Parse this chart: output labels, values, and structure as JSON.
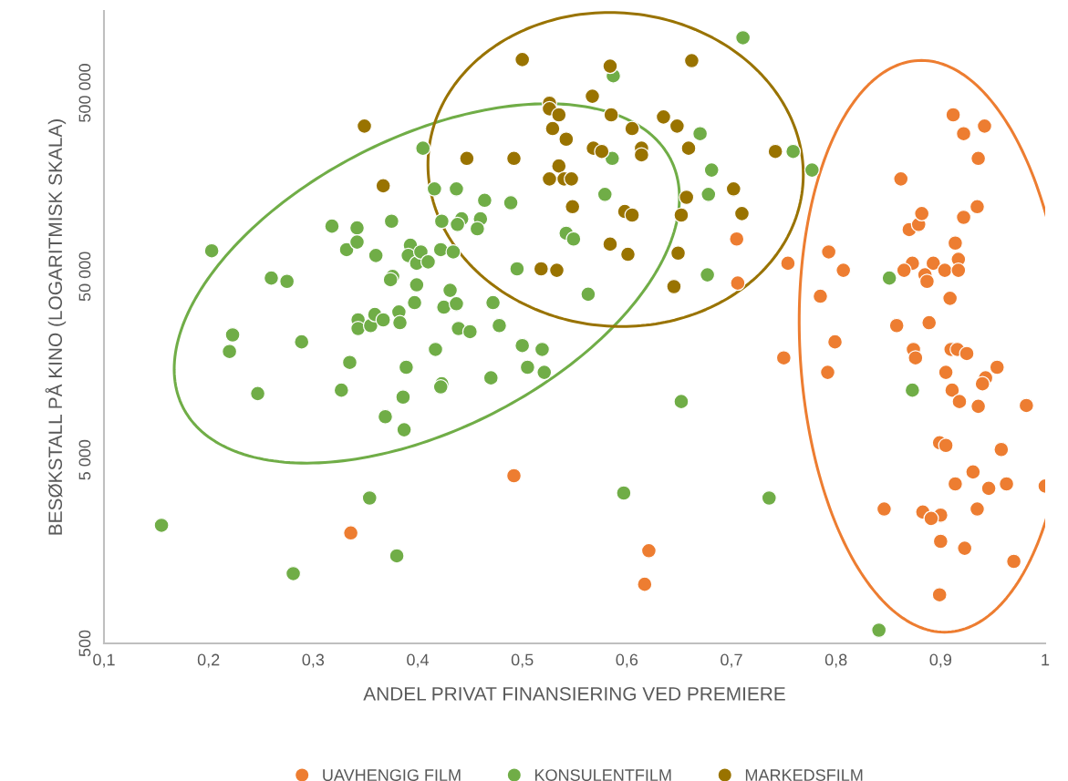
{
  "chart_data": {
    "type": "scatter",
    "xlabel": "ANDEL PRIVAT FINANSIERING VED PREMIERE",
    "ylabel": "BESØKSTALL PÅ KINO (LOGARITMISK SKALA)",
    "log": "y",
    "grid": false,
    "legend": "bottom",
    "marker": "circle",
    "xlim": [
      0.1,
      1.0
    ],
    "xticks": [
      {
        "value": 0.1,
        "label": "0,1"
      },
      {
        "value": 0.2,
        "label": "0,2"
      },
      {
        "value": 0.3,
        "label": "0,3"
      },
      {
        "value": 0.4,
        "label": "0,4"
      },
      {
        "value": 0.5,
        "label": "0,5"
      },
      {
        "value": 0.6,
        "label": "0,6"
      },
      {
        "value": 0.7,
        "label": "0,7"
      },
      {
        "value": 0.8,
        "label": "0,8"
      },
      {
        "value": 0.9,
        "label": "0,9"
      },
      {
        "value": 1.0,
        "label": "1"
      }
    ],
    "ylim": [
      500,
      1400000
    ],
    "yticks": [
      {
        "value": 500,
        "label": "500"
      },
      {
        "value": 5000,
        "label": "5 000"
      },
      {
        "value": 50000,
        "label": "50 000"
      },
      {
        "value": 500000,
        "label": "500 000"
      }
    ],
    "series": [
      {
        "name": "UAVHENGIG FILM",
        "color": "#ed7d31",
        "x": [
          0.336,
          0.492,
          0.621,
          0.617,
          0.705,
          0.706,
          0.754,
          0.75,
          0.785,
          0.793,
          0.799,
          0.807,
          0.792,
          0.862,
          0.846,
          0.858,
          0.87,
          0.879,
          0.882,
          0.873,
          0.865,
          0.893,
          0.904,
          0.885,
          0.887,
          0.909,
          0.889,
          0.912,
          0.942,
          0.922,
          0.936,
          0.935,
          0.922,
          0.914,
          0.917,
          0.917,
          0.874,
          0.876,
          0.91,
          0.916,
          0.925,
          0.954,
          0.943,
          0.94,
          0.905,
          0.911,
          0.918,
          0.936,
          0.982,
          0.899,
          0.905,
          0.958,
          0.931,
          0.914,
          0.946,
          0.963,
          1.0,
          0.883,
          0.9,
          0.891,
          0.935,
          0.9,
          0.923,
          0.97,
          0.899
        ],
        "values": [
          2000,
          4100,
          1600,
          1050,
          80000,
          46000,
          59000,
          18000,
          39000,
          68000,
          22000,
          54000,
          15000,
          170000,
          2700,
          27000,
          90000,
          96000,
          110000,
          59000,
          54000,
          59000,
          54000,
          51000,
          47000,
          38000,
          28000,
          380000,
          330000,
          300000,
          220000,
          120000,
          105000,
          76000,
          62000,
          54000,
          20000,
          18000,
          20000,
          20000,
          19000,
          16000,
          14000,
          13000,
          15000,
          12000,
          10400,
          9800,
          9900,
          6200,
          6000,
          5700,
          4300,
          3700,
          3500,
          3700,
          3600,
          2600,
          2500,
          2400,
          2700,
          1800,
          1650,
          1400,
          920
        ]
      },
      {
        "name": "KONSULENTFILM",
        "color": "#70ad47",
        "x": [
          0.155,
          0.203,
          0.223,
          0.22,
          0.247,
          0.26,
          0.275,
          0.281,
          0.289,
          0.327,
          0.335,
          0.318,
          0.332,
          0.342,
          0.342,
          0.343,
          0.343,
          0.355,
          0.359,
          0.367,
          0.382,
          0.383,
          0.36,
          0.375,
          0.405,
          0.393,
          0.391,
          0.399,
          0.403,
          0.41,
          0.376,
          0.374,
          0.399,
          0.397,
          0.369,
          0.387,
          0.389,
          0.386,
          0.354,
          0.38,
          0.711,
          0.587,
          0.67,
          0.586,
          0.681,
          0.678,
          0.579,
          0.416,
          0.437,
          0.464,
          0.489,
          0.423,
          0.442,
          0.438,
          0.46,
          0.457,
          0.542,
          0.549,
          0.422,
          0.434,
          0.495,
          0.677,
          0.563,
          0.431,
          0.472,
          0.425,
          0.437,
          0.439,
          0.45,
          0.478,
          0.417,
          0.5,
          0.519,
          0.505,
          0.521,
          0.423,
          0.422,
          0.47,
          0.652,
          0.597,
          0.759,
          0.777,
          0.851,
          0.873,
          0.736,
          0.841
        ],
        "values": [
          2200,
          69000,
          24000,
          19500,
          11500,
          49000,
          47000,
          1200,
          22000,
          12000,
          17000,
          94000,
          70000,
          92000,
          77000,
          29000,
          26000,
          27000,
          31000,
          29000,
          32000,
          28000,
          65000,
          100000,
          250000,
          74000,
          65000,
          59000,
          68000,
          60000,
          50000,
          48000,
          45000,
          36000,
          8600,
          7300,
          16000,
          11000,
          3100,
          1500,
          1000000,
          620000,
          300000,
          220000,
          190000,
          140000,
          140000,
          150000,
          150000,
          130000,
          126000,
          100000,
          103000,
          96000,
          103000,
          91000,
          86000,
          80000,
          70000,
          68000,
          55000,
          51000,
          40000,
          42000,
          36000,
          34000,
          35500,
          26000,
          25000,
          27000,
          20000,
          21000,
          20000,
          16000,
          15000,
          13000,
          12500,
          14000,
          10400,
          3300,
          240000,
          190000,
          49000,
          12000,
          3100,
          590
        ]
      },
      {
        "name": "MARKEDSFILM",
        "color": "#997300",
        "x": [
          0.349,
          0.367,
          0.5,
          0.584,
          0.662,
          0.567,
          0.526,
          0.526,
          0.535,
          0.585,
          0.635,
          0.648,
          0.605,
          0.529,
          0.542,
          0.568,
          0.576,
          0.614,
          0.614,
          0.659,
          0.447,
          0.492,
          0.535,
          0.526,
          0.54,
          0.547,
          0.702,
          0.657,
          0.71,
          0.548,
          0.598,
          0.605,
          0.652,
          0.584,
          0.601,
          0.649,
          0.518,
          0.533,
          0.645,
          0.742
        ],
        "values": [
          330000,
          156000,
          760000,
          700000,
          750000,
          480000,
          440000,
          410000,
          380000,
          380000,
          370000,
          330000,
          320000,
          320000,
          280000,
          250000,
          240000,
          250000,
          230000,
          250000,
          220000,
          220000,
          200000,
          170000,
          170000,
          170000,
          150000,
          135000,
          110000,
          120000,
          113000,
          108000,
          108000,
          75000,
          66000,
          67000,
          55000,
          54000,
          44000,
          240000
        ]
      }
    ]
  }
}
